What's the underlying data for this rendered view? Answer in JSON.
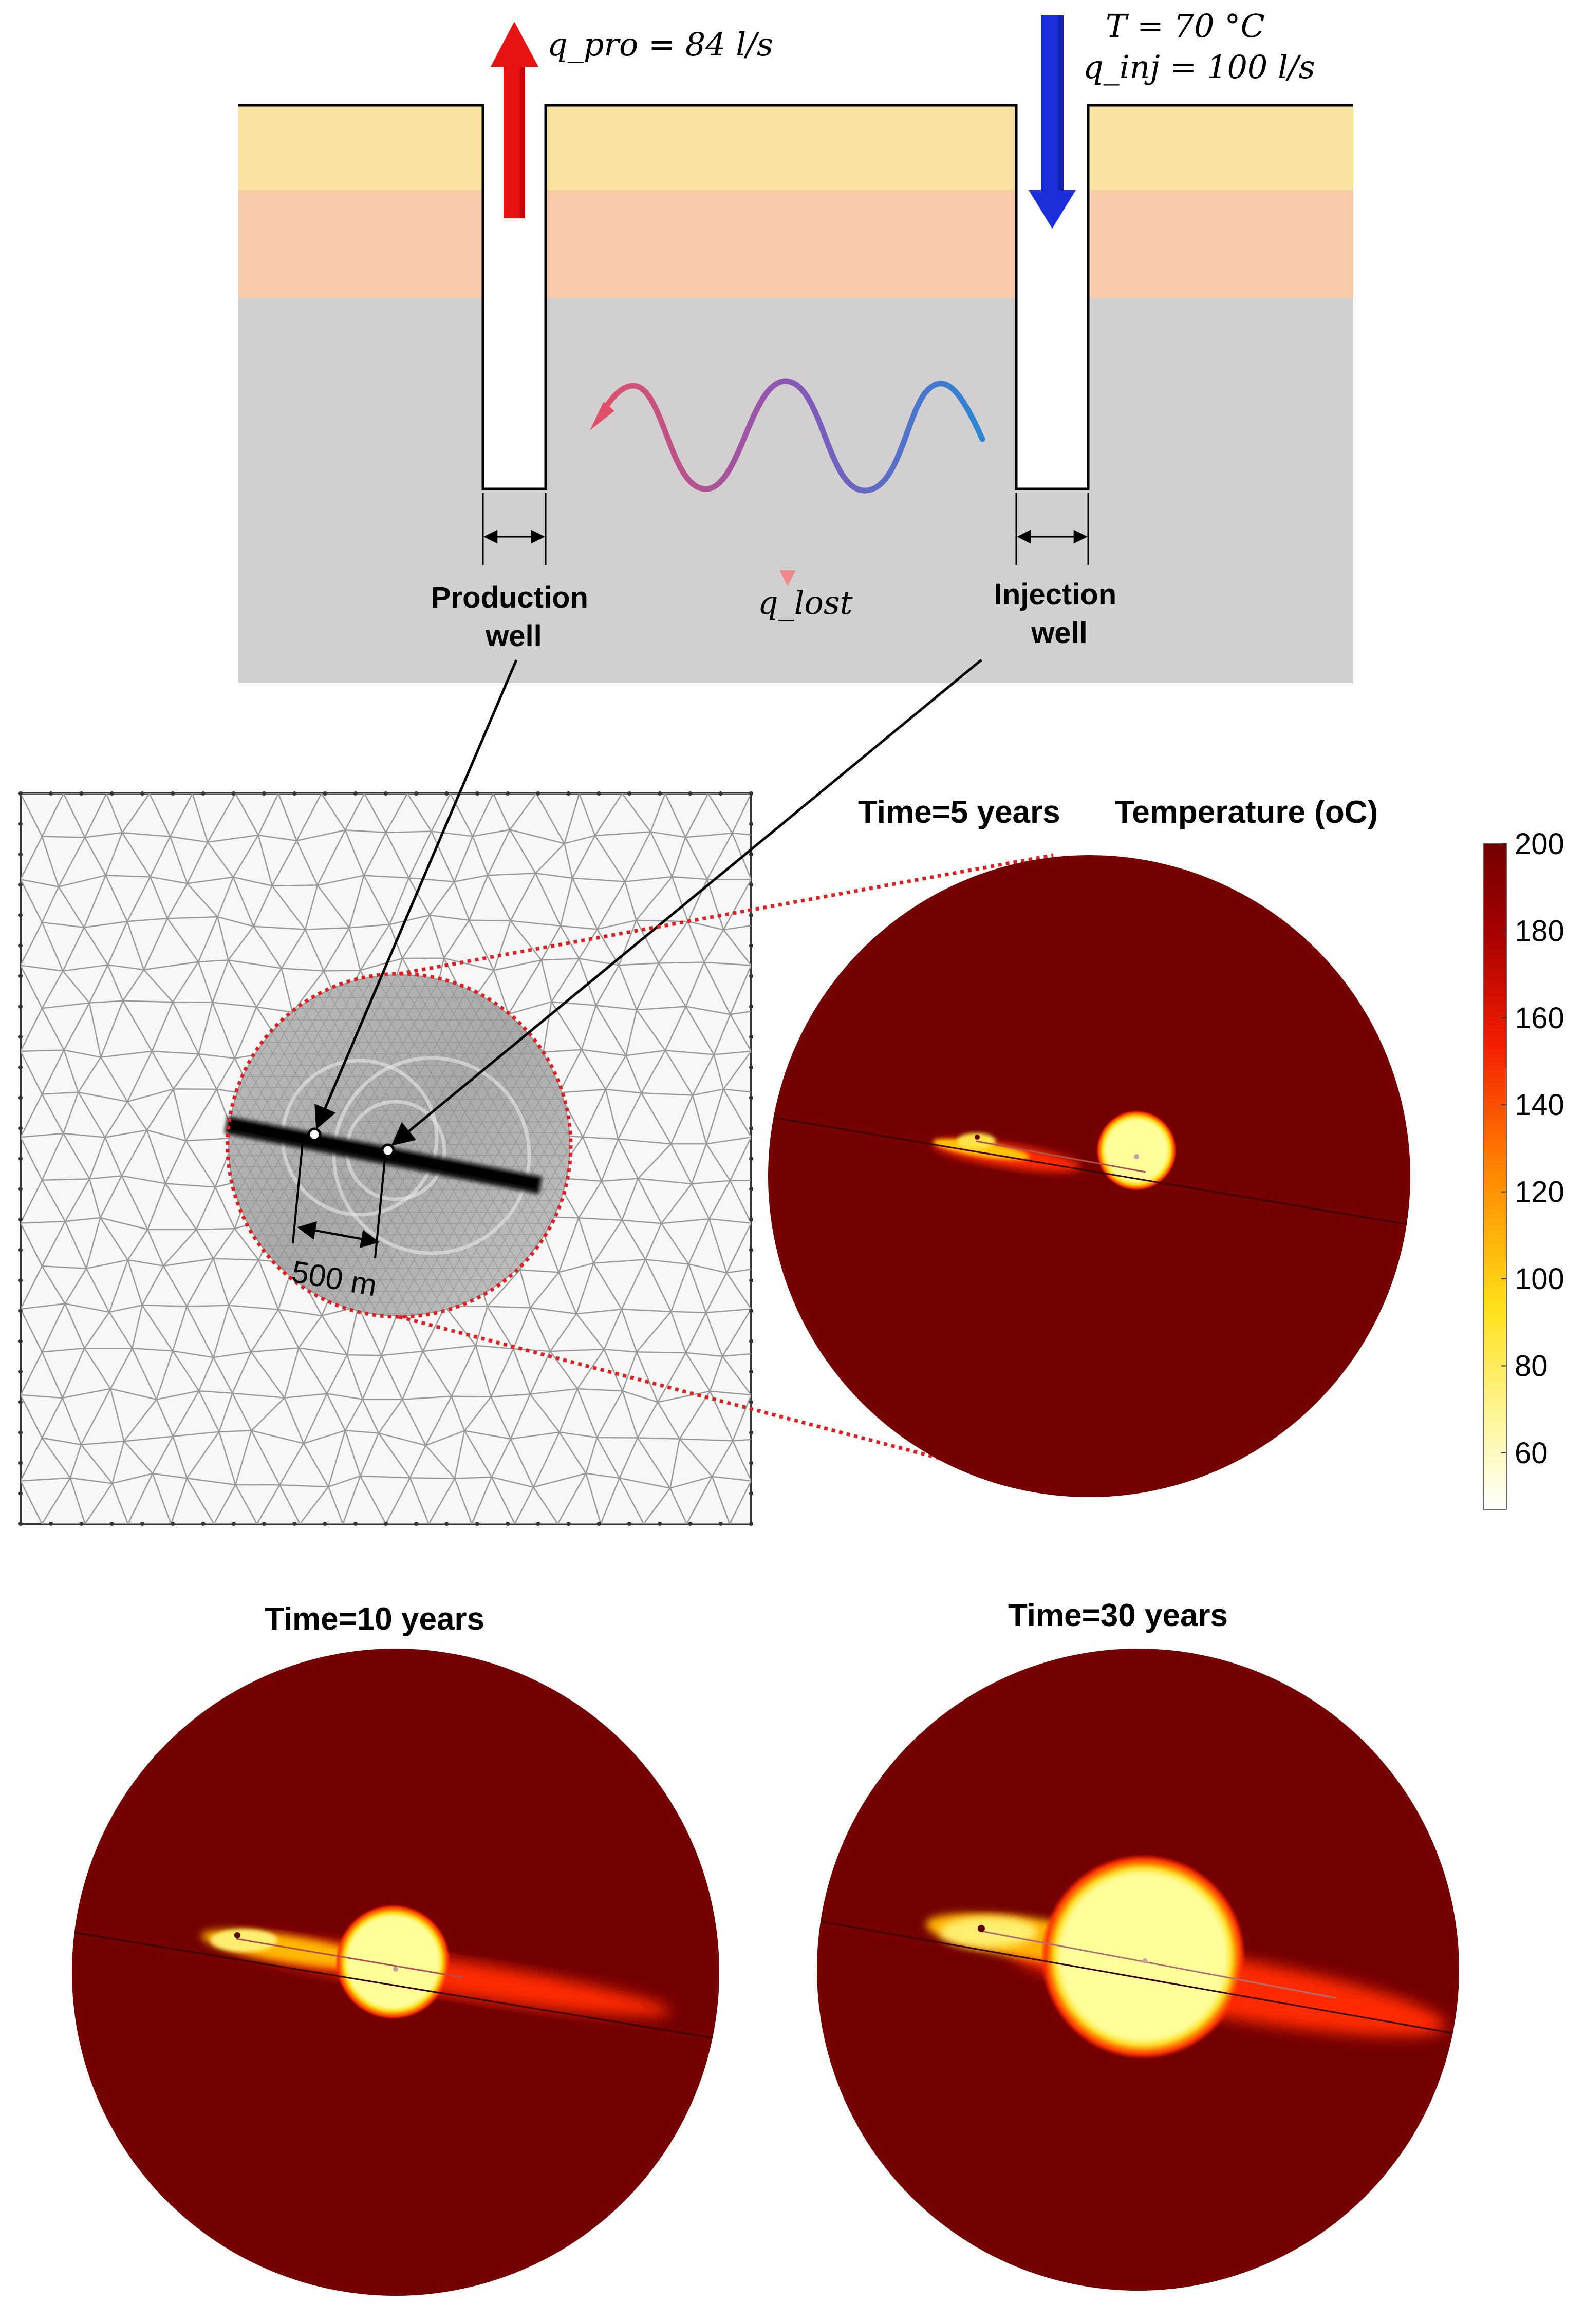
{
  "schematic": {
    "production_rate": "q_pro = 84 l/s",
    "injection_temperature": "T = 70 °C",
    "injection_rate": "q_inj = 100 l/s",
    "lost_heat": "q_lost",
    "production_well_label": [
      "Production",
      "well"
    ],
    "injection_well_label": [
      "Injection",
      "well"
    ],
    "colors": {
      "layer_top": "#fae3a1",
      "layer_middle": "#f8ccaa",
      "reservoir": "#d1cfd0",
      "production_arrow": "#e81212",
      "injection_arrow": "#1b2ed9"
    }
  },
  "mesh_panel": {
    "distance_label": "500 m",
    "zoom_outline_color": "#e02020"
  },
  "colorbar": {
    "title": "Temperature (oC)",
    "ticks": [
      200,
      180,
      160,
      140,
      120,
      100,
      80,
      60
    ],
    "range": [
      47,
      200
    ],
    "colors": [
      "#ffffff",
      "#fff7a0",
      "#ffe11a",
      "#ff8a00",
      "#f51d00",
      "#a50000",
      "#730000"
    ]
  },
  "snapshots": [
    {
      "label": "Time=5 years",
      "years": 5
    },
    {
      "label": "Time=10 years",
      "years": 10
    },
    {
      "label": "Time=30 years",
      "years": 30
    }
  ],
  "plume_colors": {
    "background": "#740000",
    "outer": "#ff1e00",
    "mid": "#ffd200",
    "core": "#ffffa8"
  }
}
